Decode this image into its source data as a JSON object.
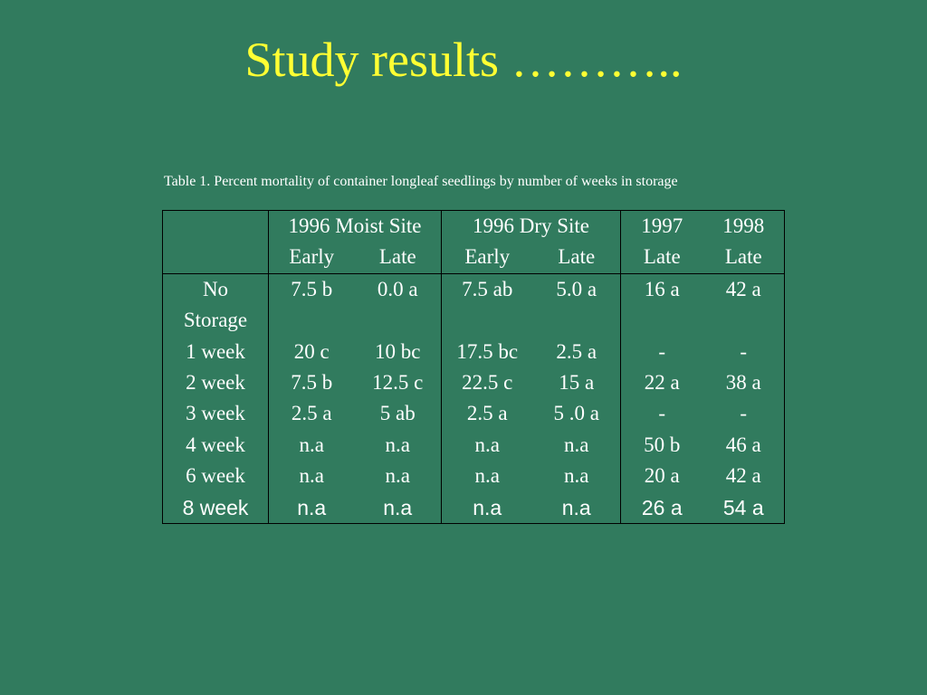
{
  "slide": {
    "title": "Study results ………..",
    "caption": "Table 1.  Percent mortality of container longleaf seedlings by number of weeks in storage"
  },
  "table": {
    "group_headers": [
      "1996 Moist Site",
      "1996 Dry Site",
      "1997",
      "1998"
    ],
    "sub_headers": [
      "Early",
      "Late",
      "Early",
      "Late",
      "Late",
      "Late"
    ],
    "rows": [
      {
        "label1": "No",
        "label2": "Storage",
        "cells": [
          "7.5 b",
          "0.0 a",
          "7.5 ab",
          "5.0 a",
          "16 a",
          "42 a"
        ]
      },
      {
        "label": "1 week",
        "cells": [
          "20 c",
          "10 bc",
          "17.5 bc",
          "2.5 a",
          "-",
          "-"
        ]
      },
      {
        "label": "2 week",
        "cells": [
          "7.5 b",
          "12.5 c",
          "22.5 c",
          "15 a",
          "22 a",
          "38 a"
        ]
      },
      {
        "label": "3 week",
        "cells": [
          "2.5 a",
          "5 ab",
          "2.5 a",
          "5 .0 a",
          "-",
          "-"
        ]
      },
      {
        "label": "4 week",
        "cells": [
          "n.a",
          "n.a",
          "n.a",
          "n.a",
          "50 b",
          "46 a"
        ]
      },
      {
        "label": "6 week",
        "cells": [
          "n.a",
          "n.a",
          "n.a",
          "n.a",
          "20 a",
          "42 a"
        ]
      },
      {
        "label": "8 week",
        "cells": [
          "n.a",
          "n.a",
          "n.a",
          "n.a",
          "26 a",
          "54 a"
        ]
      }
    ]
  }
}
